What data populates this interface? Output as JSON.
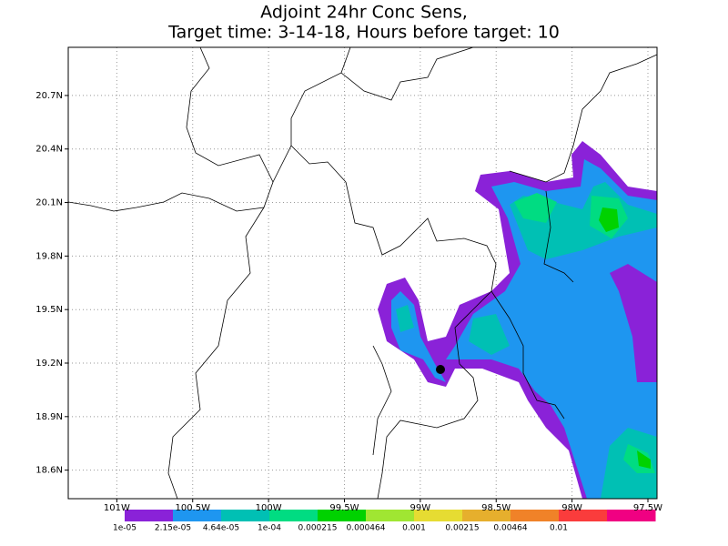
{
  "chart_data": {
    "type": "map",
    "title_lines": [
      "Adjoint 24hr Conc Sens,",
      "Target time: 3-14-18, Hours before target: 10"
    ],
    "xlim": [
      -101.32,
      -97.44
    ],
    "ylim": [
      18.44,
      20.97
    ],
    "xticks": [
      {
        "value": -101,
        "label": "101W"
      },
      {
        "value": -100.5,
        "label": "100.5W"
      },
      {
        "value": -100,
        "label": "100W"
      },
      {
        "value": -99.5,
        "label": "99.5W"
      },
      {
        "value": -99,
        "label": "99W"
      },
      {
        "value": -98.5,
        "label": "98.5W"
      },
      {
        "value": -98,
        "label": "98W"
      },
      {
        "value": -97.5,
        "label": "97.5W"
      }
    ],
    "yticks": [
      {
        "value": 18.6,
        "label": "18.6N"
      },
      {
        "value": 18.9,
        "label": "18.9N"
      },
      {
        "value": 19.2,
        "label": "19.2N"
      },
      {
        "value": 19.5,
        "label": "19.5N"
      },
      {
        "value": 19.8,
        "label": "19.8N"
      },
      {
        "value": 20.1,
        "label": "20.1N"
      },
      {
        "value": 20.4,
        "label": "20.4N"
      },
      {
        "value": 20.7,
        "label": "20.7N"
      }
    ],
    "grid": true,
    "colorbar": {
      "colors": [
        "#8a22d8",
        "#1e96f0",
        "#00c0b4",
        "#00dc82",
        "#00d200",
        "#a0e632",
        "#e6dc32",
        "#e6af2d",
        "#f08228",
        "#fa3c3c",
        "#f00082"
      ],
      "labels": [
        "1e-05",
        "2.15e-05",
        "4.64e-05",
        "1e-04",
        "0.000215",
        "0.000464",
        "0.001",
        "0.00215",
        "0.00464",
        "0.01"
      ]
    }
  }
}
